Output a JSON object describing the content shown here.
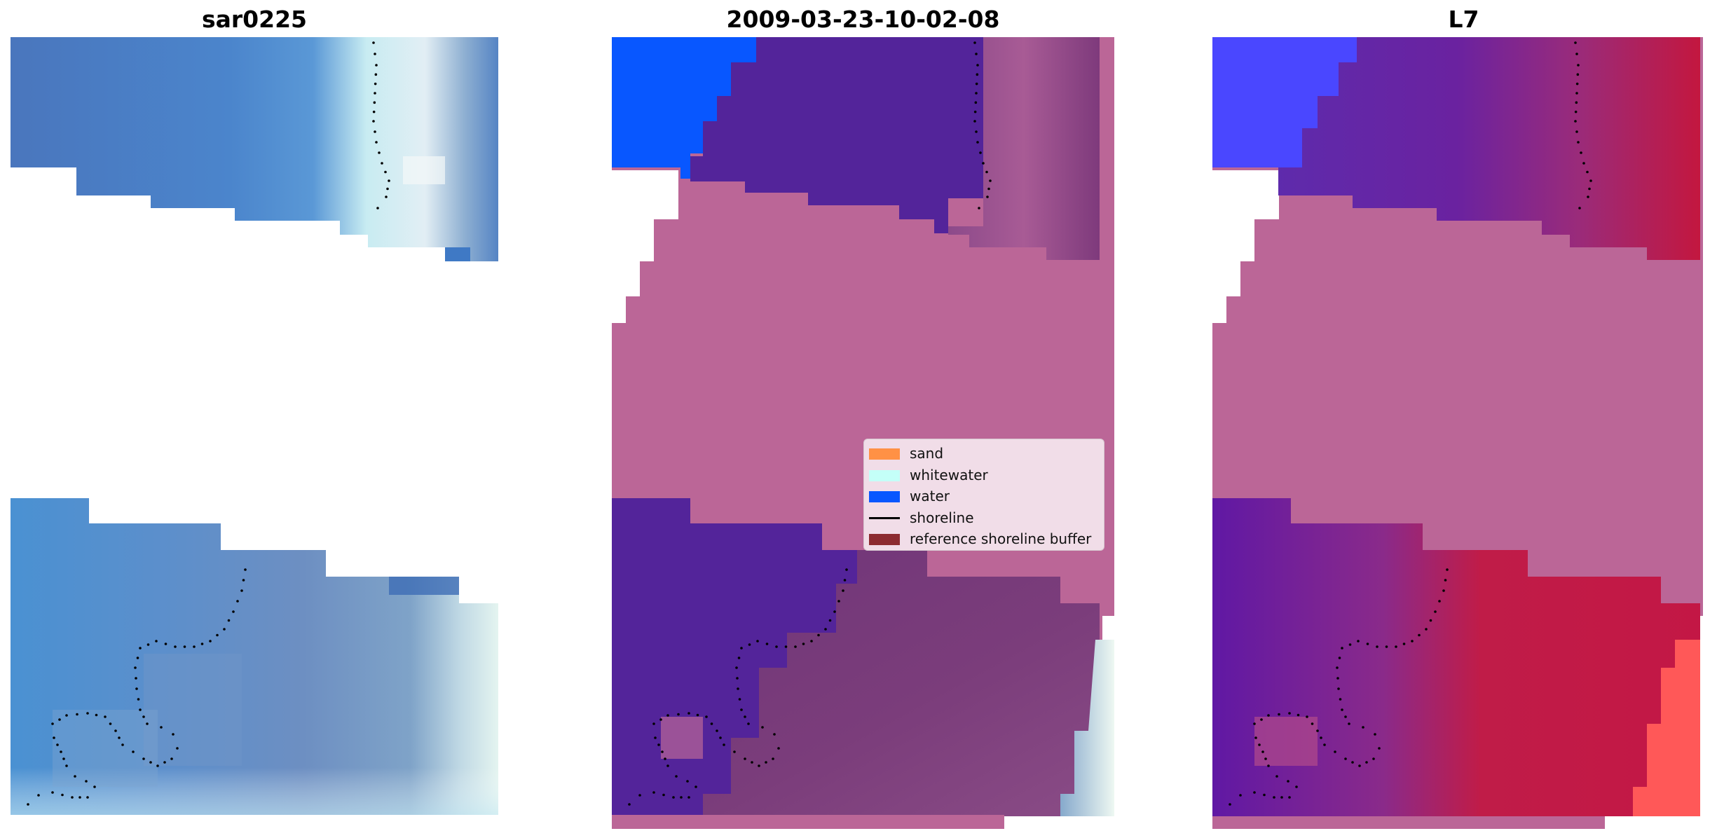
{
  "panels": [
    {
      "title": "sar0225"
    },
    {
      "title": "2009-03-23-10-02-08"
    },
    {
      "title": "L7"
    }
  ],
  "legend": {
    "items": [
      {
        "label": "sand",
        "kind": "patch",
        "color": "#ff9145"
      },
      {
        "label": "whitewater",
        "kind": "patch",
        "color": "#c4fff8"
      },
      {
        "label": "water",
        "kind": "patch",
        "color": "#0857ff"
      },
      {
        "label": "shoreline",
        "kind": "line",
        "color": "#000000"
      },
      {
        "label": "reference shoreline buffer",
        "kind": "patch",
        "color": "#8c2b30"
      }
    ]
  },
  "colors": {
    "background": "#ffffff",
    "rgb_water_blue": "#4d7fc6",
    "rgb_light_blue": "#6ba3d9",
    "rgb_whitewater": "#d8f0f0",
    "class_sand_overlay": "#bb6697",
    "class_water_dark": "#53249a",
    "class_water_blue": "#0857ff",
    "class_blend": "#7a3b7c",
    "index_red": "#c3173f",
    "index_purple": "#6a22a0",
    "index_blue": "#4a47ff",
    "index_bright_red": "#ff5858",
    "shoreline_dots": "#000000"
  }
}
